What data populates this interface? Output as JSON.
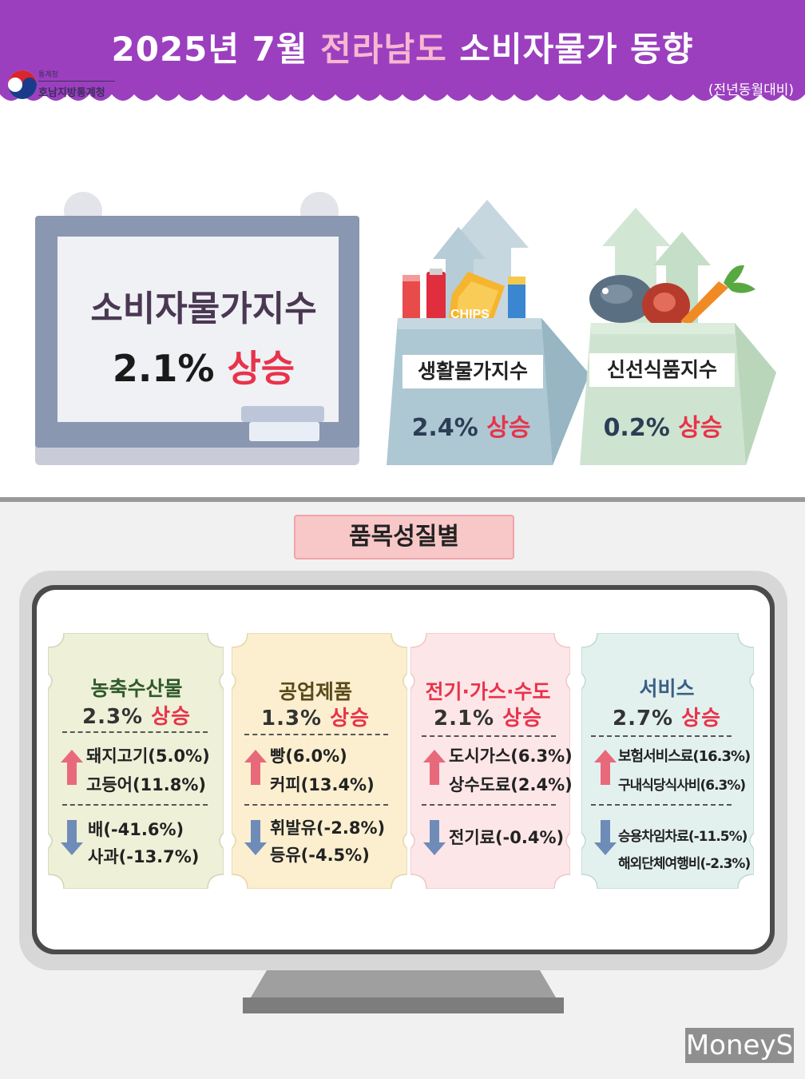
{
  "header": {
    "title_prefix": "2025년 7월 ",
    "title_highlight": "전라남도",
    "title_suffix": " 소비자물가 동향",
    "subtitle": "(전년동월대비)",
    "logo_small": "통계청",
    "logo_text": "호남지방통계청"
  },
  "cpi": {
    "label": "소비자물가지수",
    "value": "2.1%",
    "change": "상승"
  },
  "living": {
    "label": "생활물가지수",
    "value": "2.4%",
    "change": "상승",
    "chips_text": "CHIPS"
  },
  "fresh": {
    "label": "신선식품지수",
    "value": "0.2%",
    "change": "상승"
  },
  "section_title": "품목성질별",
  "categories": [
    {
      "title": "농축수산물",
      "value": "2.3%",
      "change": "상승",
      "up_items": [
        "돼지고기(5.0%)",
        "고등어(11.8%)"
      ],
      "down_items": [
        "배(-41.6%)",
        "사과(-13.7%)"
      ]
    },
    {
      "title": "공업제품",
      "value": "1.3%",
      "change": "상승",
      "up_items": [
        "빵(6.0%)",
        "커피(13.4%)"
      ],
      "down_items": [
        "휘발유(-2.8%)",
        "등유(-4.5%)"
      ]
    },
    {
      "title": "전기·가스·수도",
      "value": "2.1%",
      "change": "상승",
      "up_items": [
        "도시가스(6.3%)",
        "상수도료(2.4%)"
      ],
      "down_items": [
        "전기료(-0.4%)"
      ]
    },
    {
      "title": "서비스",
      "value": "2.7%",
      "change": "상승",
      "up_items": [
        "보험서비스료(16.3%)",
        "구내식당식사비(6.3%)"
      ],
      "down_items": [
        "승용차임차료(-11.5%)",
        "해외단체여행비(-2.3%)"
      ]
    }
  ],
  "colors": {
    "header_purple": "#9b3fbf",
    "up_red": "#e8334a",
    "ticket1": "#eef0d8",
    "ticket2": "#fbefd0",
    "ticket3": "#fde6e8",
    "ticket4": "#e3f1ee"
  },
  "watermark": "MoneyS"
}
